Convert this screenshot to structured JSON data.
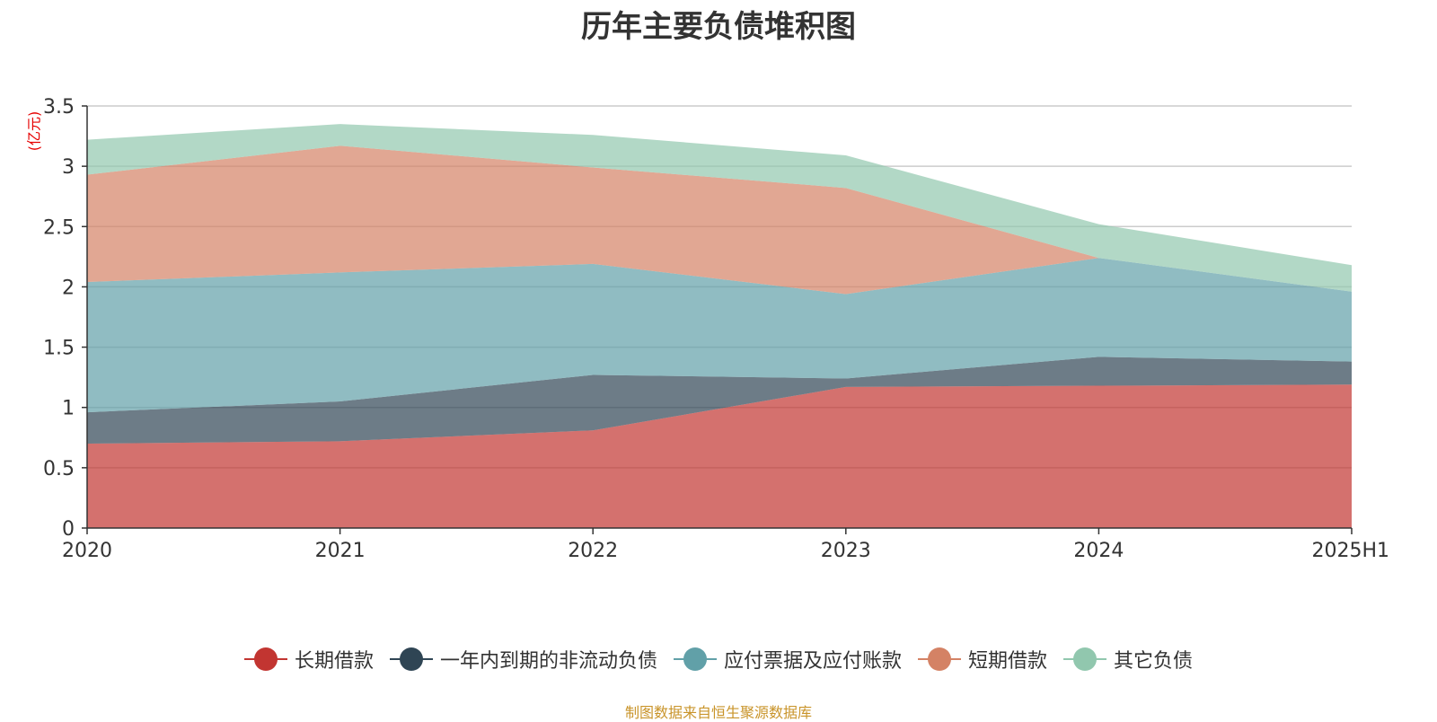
{
  "chart_data": {
    "type": "area",
    "stacked": true,
    "title": "历年主要负债堆积图",
    "ylabel": "(亿元)",
    "xlabel": "",
    "categories": [
      "2020",
      "2021",
      "2022",
      "2023",
      "2024",
      "2025H1"
    ],
    "ylim": [
      0,
      3.5
    ],
    "yticks": [
      "0",
      "0.5",
      "1",
      "1.5",
      "2",
      "2.5",
      "3",
      "3.5"
    ],
    "grid": true,
    "legend_position": "bottom",
    "series": [
      {
        "name": "长期借款",
        "color": "#c23531",
        "values": [
          0.7,
          0.72,
          0.81,
          1.17,
          1.18,
          1.19
        ]
      },
      {
        "name": "一年内到期的非流动负债",
        "color": "#2f4554",
        "values": [
          0.26,
          0.33,
          0.46,
          0.07,
          0.24,
          0.19
        ]
      },
      {
        "name": "应付票据及应付账款",
        "color": "#61a0a8",
        "values": [
          1.08,
          1.07,
          0.92,
          0.7,
          0.82,
          0.58
        ]
      },
      {
        "name": "短期借款",
        "color": "#d48265",
        "values": [
          0.89,
          1.05,
          0.8,
          0.88,
          0.0,
          0.0
        ]
      },
      {
        "name": "其它负债",
        "color": "#91c7ae",
        "values": [
          0.29,
          0.18,
          0.27,
          0.27,
          0.28,
          0.22
        ]
      }
    ]
  },
  "footer": "制图数据来自恒生聚源数据库"
}
